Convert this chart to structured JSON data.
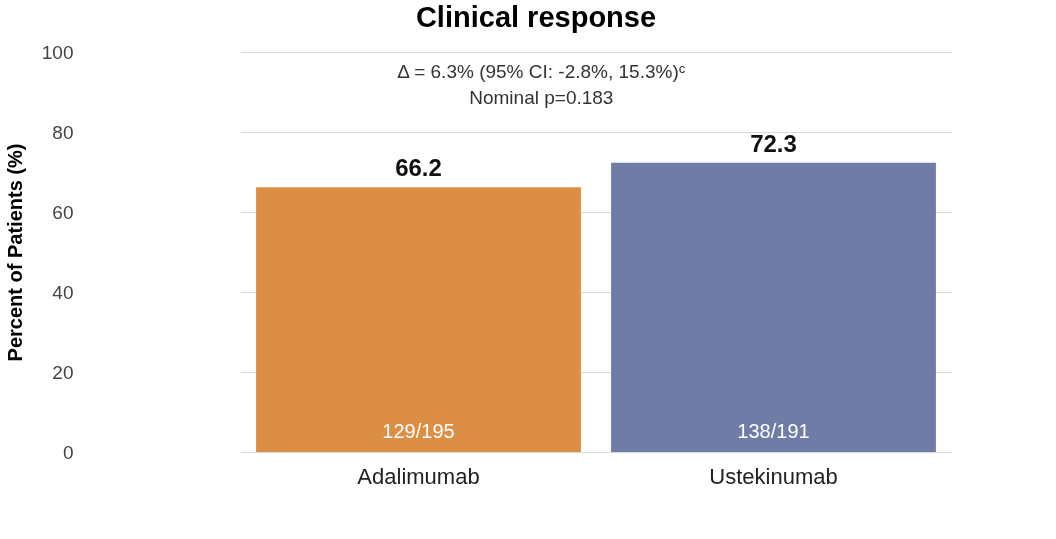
{
  "chart_data": {
    "type": "bar",
    "title": "Clinical response",
    "ylabel": "Percent of Patients (%)",
    "categories": [
      "Adalimumab",
      "Ustekinumab"
    ],
    "values": [
      66.2,
      72.3
    ],
    "colors": [
      "#dc8e44",
      "#6e7ca6"
    ],
    "ylim": [
      0,
      100
    ],
    "yticks": [
      0,
      20,
      40,
      60,
      80,
      100
    ],
    "grid": "y",
    "data_labels": true,
    "annotations": [
      "Δ = 6.3% (95% CI: -2.8%, 15.3%)ᶜ",
      "Nominal p=0.183",
      "129/195",
      "138/191"
    ]
  }
}
